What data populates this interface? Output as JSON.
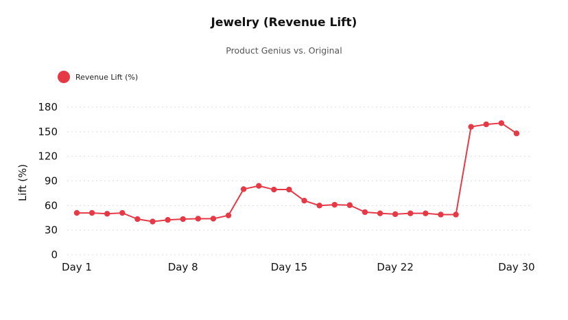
{
  "chart_data": {
    "type": "line",
    "title": "Jewelry (Revenue Lift)",
    "subtitle": "Product Genius vs. Original",
    "xlabel": "",
    "ylabel": "Lift (%)",
    "ylim": [
      0,
      180
    ],
    "yticks": [
      0,
      30,
      60,
      90,
      120,
      150,
      180
    ],
    "xtick_labels": [
      {
        "day": 1,
        "label": "Day 1"
      },
      {
        "day": 8,
        "label": "Day 8"
      },
      {
        "day": 15,
        "label": "Day 15"
      },
      {
        "day": 22,
        "label": "Day 22"
      },
      {
        "day": 30,
        "label": "Day 30"
      }
    ],
    "grid": "horizontal-dotted",
    "legend_position": "top-left",
    "x": [
      1,
      2,
      3,
      4,
      5,
      6,
      7,
      8,
      9,
      10,
      11,
      12,
      13,
      14,
      15,
      16,
      17,
      18,
      19,
      20,
      21,
      22,
      23,
      24,
      25,
      26,
      27,
      28,
      29,
      30
    ],
    "series": [
      {
        "name": "Revenue Lift (%)",
        "color": "#e63946",
        "values": [
          51,
          51,
          50,
          51,
          43.5,
          40.5,
          42.5,
          43.5,
          44,
          44,
          48,
          80,
          84,
          79.5,
          79.5,
          66,
          60,
          61,
          60.5,
          52,
          50.5,
          49.5,
          50.5,
          50.5,
          49,
          49,
          156,
          159,
          160.5,
          148
        ]
      }
    ]
  }
}
